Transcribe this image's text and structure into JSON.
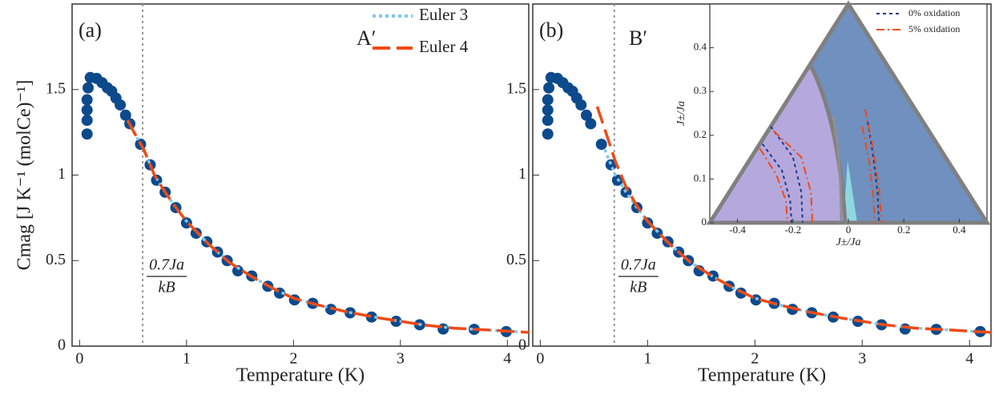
{
  "chart_data": [
    {
      "type": "scatter",
      "title": "(a)",
      "annotation": "A′",
      "xlabel": "Temperature (K)",
      "ylabel": "Cmag [J K⁻¹ (molCe)⁻¹]",
      "xlim": [
        -0.07,
        4.2
      ],
      "ylim": [
        0,
        2
      ],
      "xticks": [
        0,
        1,
        2,
        3,
        4
      ],
      "yticks": [
        0,
        0.5,
        1,
        1.5
      ],
      "vline": 0.59,
      "vline_label": {
        "numerator": "0.7Ja",
        "denominator": "kB"
      },
      "legend": "upper right",
      "points": {
        "color": "#0d4a8c",
        "x": [
          0.07,
          0.07,
          0.07,
          0.07,
          0.08,
          0.1,
          0.16,
          0.21,
          0.26,
          0.3,
          0.34,
          0.38,
          0.43,
          0.47,
          0.57,
          0.66,
          0.72,
          0.8,
          0.9,
          1.0,
          1.09,
          1.19,
          1.29,
          1.38,
          1.48,
          1.61,
          1.76,
          1.87,
          2.01,
          2.18,
          2.35,
          2.53,
          2.73,
          2.96,
          3.18,
          3.4,
          3.69,
          3.99
        ],
        "values": [
          1.24,
          1.32,
          1.38,
          1.44,
          1.51,
          1.57,
          1.565,
          1.54,
          1.51,
          1.49,
          1.45,
          1.41,
          1.35,
          1.3,
          1.18,
          1.06,
          0.97,
          0.9,
          0.81,
          0.72,
          0.66,
          0.61,
          0.55,
          0.5,
          0.44,
          0.41,
          0.35,
          0.31,
          0.27,
          0.25,
          0.215,
          0.195,
          0.17,
          0.145,
          0.125,
          0.1,
          0.098,
          0.085
        ]
      },
      "series": [
        {
          "name": "Euler 3",
          "color": "#7ec8f0",
          "style": "dotted",
          "x": [
            0.45,
            0.5,
            0.6,
            0.7,
            0.8,
            0.9,
            1.0,
            1.2,
            1.4,
            1.6,
            1.8,
            2.0,
            2.2,
            2.5,
            2.8,
            3.0,
            3.2,
            3.5,
            3.8,
            4.2
          ],
          "values": [
            1.32,
            1.26,
            1.15,
            1.0,
            0.9,
            0.81,
            0.73,
            0.6,
            0.49,
            0.41,
            0.34,
            0.28,
            0.245,
            0.2,
            0.165,
            0.145,
            0.125,
            0.105,
            0.095,
            0.08
          ]
        },
        {
          "name": "Euler 4",
          "color": "#f04a14",
          "style": "dashed",
          "x": [
            0.45,
            0.5,
            0.6,
            0.7,
            0.8,
            0.9,
            1.0,
            1.2,
            1.4,
            1.6,
            1.8,
            2.0,
            2.2,
            2.5,
            2.8,
            3.0,
            3.2,
            3.5,
            3.8,
            4.2
          ],
          "values": [
            1.32,
            1.26,
            1.15,
            1.0,
            0.9,
            0.81,
            0.73,
            0.6,
            0.49,
            0.41,
            0.34,
            0.28,
            0.245,
            0.2,
            0.165,
            0.145,
            0.125,
            0.105,
            0.095,
            0.08
          ]
        }
      ]
    },
    {
      "type": "scatter",
      "title": "(b)",
      "annotation": "B′",
      "xlabel": "Temperature (K)",
      "xlim": [
        -0.07,
        4.2
      ],
      "ylim": [
        0,
        2
      ],
      "xticks": [
        0,
        1,
        2,
        3,
        4
      ],
      "yticks": [
        0,
        0.5,
        1,
        1.5
      ],
      "vline": 0.69,
      "vline_label": {
        "numerator": "0.7Ja",
        "denominator": "kB"
      },
      "points": {
        "color": "#0d4a8c",
        "x": [
          0.07,
          0.07,
          0.07,
          0.07,
          0.08,
          0.1,
          0.16,
          0.21,
          0.26,
          0.3,
          0.34,
          0.38,
          0.43,
          0.47,
          0.57,
          0.66,
          0.72,
          0.8,
          0.9,
          1.0,
          1.09,
          1.19,
          1.29,
          1.38,
          1.48,
          1.61,
          1.76,
          1.87,
          2.01,
          2.18,
          2.35,
          2.53,
          2.73,
          2.96,
          3.18,
          3.4,
          3.69,
          4.1
        ],
        "values": [
          1.24,
          1.32,
          1.38,
          1.44,
          1.51,
          1.57,
          1.565,
          1.54,
          1.51,
          1.49,
          1.45,
          1.41,
          1.35,
          1.3,
          1.18,
          1.06,
          0.97,
          0.9,
          0.81,
          0.72,
          0.66,
          0.61,
          0.55,
          0.5,
          0.44,
          0.41,
          0.35,
          0.31,
          0.27,
          0.25,
          0.215,
          0.195,
          0.17,
          0.145,
          0.125,
          0.1,
          0.098,
          0.085
        ]
      },
      "series": [
        {
          "color": "#7ec8f0",
          "style": "dotted",
          "x": [
            0.6,
            0.7,
            0.8,
            0.9,
            1.0,
            1.2,
            1.4,
            1.6,
            1.8,
            2.0,
            2.2,
            2.5,
            2.8,
            3.0,
            3.2,
            3.5,
            3.8,
            4.2
          ],
          "values": [
            1.15,
            1.0,
            0.9,
            0.81,
            0.73,
            0.6,
            0.49,
            0.41,
            0.34,
            0.28,
            0.245,
            0.2,
            0.165,
            0.145,
            0.125,
            0.105,
            0.095,
            0.08
          ]
        },
        {
          "color": "#f04a14",
          "style": "dashed",
          "x": [
            0.53,
            0.6,
            0.7,
            0.8,
            0.9,
            1.0,
            1.2,
            1.4,
            1.6,
            1.8,
            2.0,
            2.2,
            2.5,
            2.8,
            3.0,
            3.2,
            3.5,
            3.8,
            4.2
          ],
          "values": [
            1.4,
            1.27,
            1.08,
            0.93,
            0.82,
            0.73,
            0.6,
            0.49,
            0.41,
            0.34,
            0.28,
            0.245,
            0.2,
            0.165,
            0.145,
            0.125,
            0.105,
            0.095,
            0.08
          ]
        }
      ]
    },
    {
      "type": "line",
      "xlabel": "J±/Ja",
      "ylabel": "J±/Ja",
      "xlim": [
        -0.5,
        0.5
      ],
      "ylim": [
        0,
        0.5
      ],
      "xticks": [
        -0.4,
        -0.2,
        0,
        0.2,
        0.4
      ],
      "yticks": [
        0,
        0.1,
        0.2,
        0.3,
        0.4
      ],
      "legend": "upper right",
      "series": [
        {
          "name": "0% oxidation",
          "color": "#1a3a8a",
          "style": "dotted",
          "x": [
            -0.28,
            -0.2,
            -0.17,
            -0.165,
            null,
            -0.31,
            -0.24,
            -0.21,
            -0.205,
            null,
            0.07,
            0.09,
            0.105,
            0.11
          ],
          "values": [
            0.22,
            0.15,
            0.07,
            0,
            null,
            0.18,
            0.12,
            0.05,
            0,
            null,
            0.23,
            0.15,
            0.07,
            0
          ]
        },
        {
          "name": "5% oxidation",
          "color": "#f04a14",
          "style": "dashdot",
          "x": [
            -0.27,
            -0.17,
            -0.135,
            -0.13,
            null,
            -0.32,
            -0.26,
            -0.225,
            -0.22,
            null,
            0.06,
            0.09,
            0.11,
            0.12,
            null,
            0.05,
            0.075,
            0.09,
            0.095
          ],
          "values": [
            0.21,
            0.15,
            0.07,
            0,
            null,
            0.17,
            0.11,
            0.05,
            0,
            null,
            0.26,
            0.17,
            0.08,
            0,
            null,
            0.22,
            0.14,
            0.06,
            0
          ]
        }
      ]
    }
  ]
}
